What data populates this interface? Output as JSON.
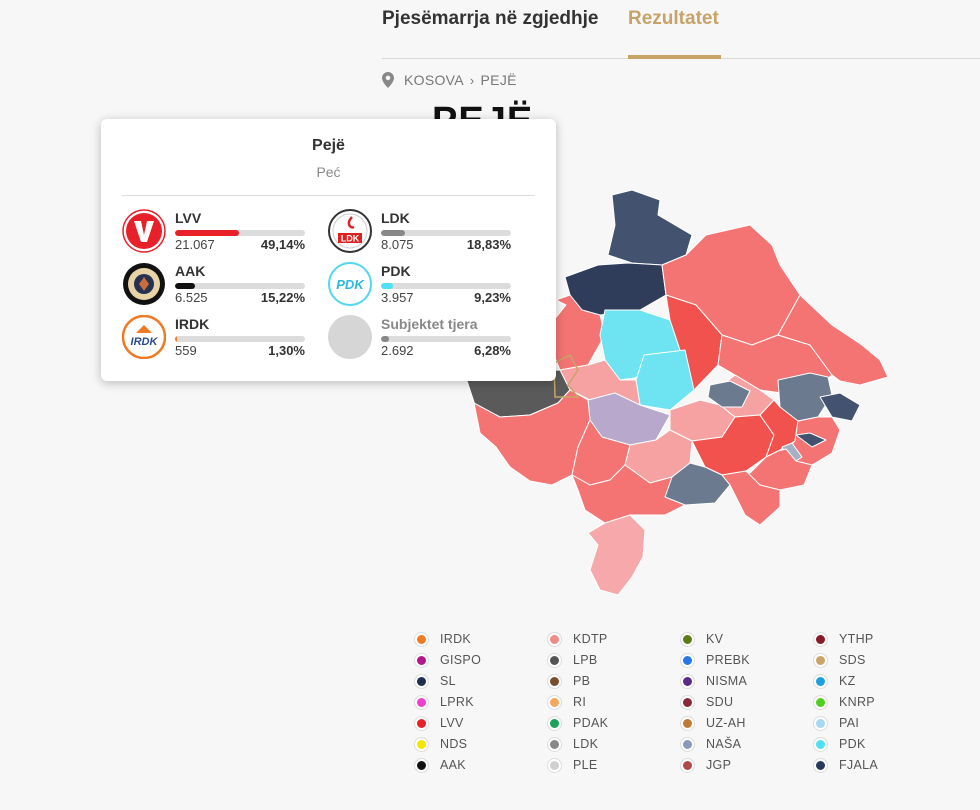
{
  "tabs": [
    {
      "label": "Pjesëmarrja në zgjedhje"
    },
    {
      "label": "Rezultatet"
    }
  ],
  "breadcrumb": [
    "KOSOVA",
    "PEJË"
  ],
  "page_title": "PEJË",
  "tooltip": {
    "title": "Pejë",
    "subtitle": "Peć",
    "parties": [
      {
        "name": "LVV",
        "votes": "21.067",
        "pct": "49,14%",
        "share": 0.4914,
        "color": "#e8202a",
        "logo": "lvv-logo"
      },
      {
        "name": "LDK",
        "votes": "8.075",
        "pct": "18,83%",
        "share": 0.1883,
        "color": "#888888",
        "logo": "ldk-logo"
      },
      {
        "name": "AAK",
        "votes": "6.525",
        "pct": "15,22%",
        "share": 0.1522,
        "color": "#111111",
        "logo": "aak-logo"
      },
      {
        "name": "PDK",
        "votes": "3.957",
        "pct": "9,23%",
        "share": 0.0923,
        "color": "#4fe0f5",
        "logo": "pdk-logo"
      },
      {
        "name": "IRDK",
        "votes": "559",
        "pct": "1,30%",
        "share": 0.013,
        "color": "#f07a22",
        "logo": "irdk-logo"
      },
      {
        "name": "Subjektet tjera",
        "votes": "2.692",
        "pct": "6,28%",
        "share": 0.0628,
        "color": "#888888",
        "logo": "other-placeholder"
      }
    ]
  },
  "legend": [
    {
      "label": "IRDK",
      "color": "#f07a22"
    },
    {
      "label": "GISPO",
      "color": "#b5168a"
    },
    {
      "label": "SL",
      "color": "#1f2d4f"
    },
    {
      "label": "LPRK",
      "color": "#f03fcf"
    },
    {
      "label": "LVV",
      "color": "#e8202a"
    },
    {
      "label": "NDS",
      "color": "#f5e600"
    },
    {
      "label": "AAK",
      "color": "#111111"
    },
    {
      "label": "KDTP",
      "color": "#f08a86"
    },
    {
      "label": "LPB",
      "color": "#555555"
    },
    {
      "label": "PB",
      "color": "#7a4e2b"
    },
    {
      "label": "RI",
      "color": "#f6a55a"
    },
    {
      "label": "PDAK",
      "color": "#1aa15a"
    },
    {
      "label": "LDK",
      "color": "#888888"
    },
    {
      "label": "PLE",
      "color": "#cfcfcf"
    },
    {
      "label": "KV",
      "color": "#5c7a18"
    },
    {
      "label": "PREBK",
      "color": "#2677e8"
    },
    {
      "label": "NISMA",
      "color": "#5a2a8a"
    },
    {
      "label": "SDU",
      "color": "#8a2838"
    },
    {
      "label": "UZ-AH",
      "color": "#c07a34"
    },
    {
      "label": "NAŠA",
      "color": "#8899bb"
    },
    {
      "label": "JGP",
      "color": "#b04848"
    },
    {
      "label": "YTHP",
      "color": "#8a1a2a"
    },
    {
      "label": "SDS",
      "color": "#c9a36a"
    },
    {
      "label": "KZ",
      "color": "#1f9fdf"
    },
    {
      "label": "KNRP",
      "color": "#4fcf20"
    },
    {
      "label": "PAI",
      "color": "#a8d8f0"
    },
    {
      "label": "PDK",
      "color": "#4fe0f5"
    },
    {
      "label": "FJALA",
      "color": "#2a3a5c"
    }
  ]
}
